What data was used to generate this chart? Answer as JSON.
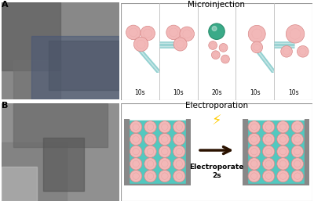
{
  "fig_width": 4.0,
  "fig_height": 2.62,
  "dpi": 100,
  "background": "#ffffff",
  "panel_A_label": "A",
  "panel_B_label": "B",
  "microinjection_title": "Microinjection",
  "electroporation_title": "Electroporation",
  "micro_times": [
    "10s",
    "10s",
    "20s",
    "10s",
    "10s"
  ],
  "electroporate_label": "Electroporate\n2s",
  "cell_color": "#f2b8b8",
  "cell_edge_color": "#d88888",
  "needle_color": "#88cccc",
  "needle_stripe_color": "#aadddd",
  "teal_bg": "#52c8bf",
  "cuvette_wall_color": "#888888",
  "arrow_color": "#2a1200",
  "lightning_color": "#ffcc00",
  "green_ball_color": "#3aaa88",
  "green_ball_edge": "#228866",
  "text_color": "#222222",
  "photo_a_color": "#b0b0b0",
  "photo_b_color": "#a0a0a0",
  "panel_border_color": "#999999",
  "divider_color": "#bbbbbb"
}
